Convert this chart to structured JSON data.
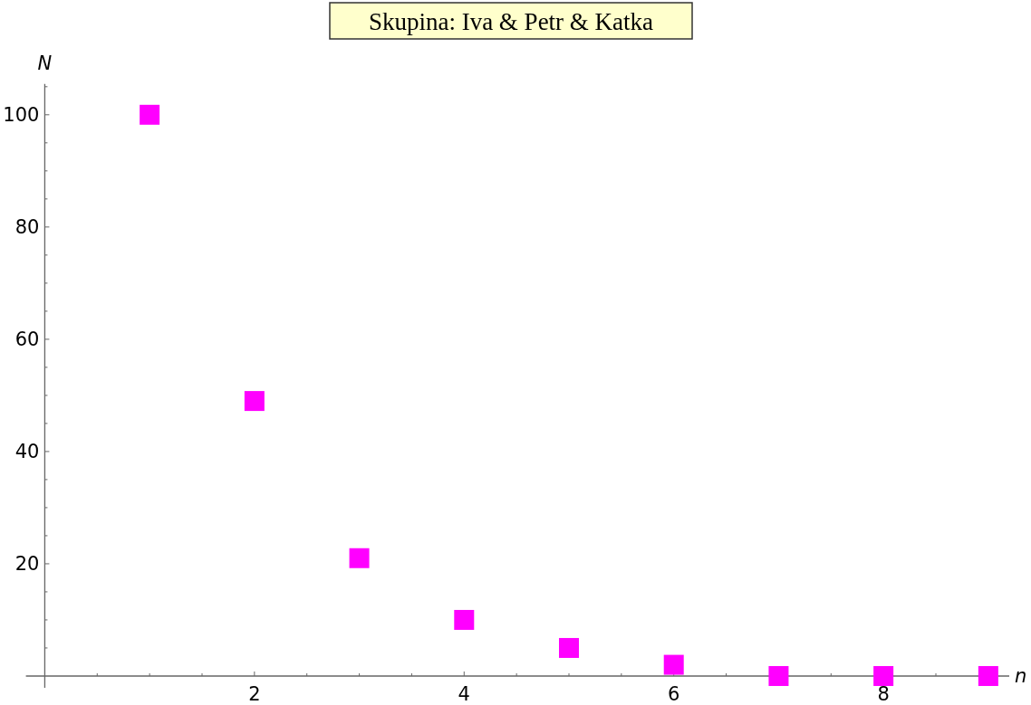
{
  "chart_data": {
    "type": "scatter",
    "title": "Skupina: Iva & Petr & Katka",
    "xlabel": "n",
    "ylabel": "N",
    "x": [
      1,
      2,
      3,
      4,
      5,
      6,
      7,
      8,
      9
    ],
    "series": [
      {
        "color": "#ff00ff",
        "values": [
          100,
          49,
          21,
          10,
          5,
          2,
          0,
          0,
          0
        ]
      }
    ],
    "marker": "square",
    "xlim": [
      -0.18,
      9.2
    ],
    "ylim": [
      -2.1,
      105.5
    ],
    "xticks": [
      {
        "value": 0.5,
        "label": null
      },
      {
        "value": 1,
        "label": null
      },
      {
        "value": 1.5,
        "label": null
      },
      2,
      {
        "value": 2.5,
        "label": null
      },
      {
        "value": 3,
        "label": null
      },
      {
        "value": 3.5,
        "label": null
      },
      4,
      {
        "value": 4.5,
        "label": null
      },
      {
        "value": 5,
        "label": null
      },
      {
        "value": 5.5,
        "label": null
      },
      6,
      {
        "value": 6.5,
        "label": null
      },
      {
        "value": 7,
        "label": null
      },
      {
        "value": 7.5,
        "label": null
      },
      8,
      {
        "value": 8.5,
        "label": null
      },
      {
        "value": 9,
        "label": null
      }
    ],
    "yticks": [
      {
        "value": 5,
        "label": null
      },
      {
        "value": 10,
        "label": null
      },
      {
        "value": 15,
        "label": null
      },
      20,
      {
        "value": 25,
        "label": null
      },
      {
        "value": 30,
        "label": null
      },
      {
        "value": 35,
        "label": null
      },
      40,
      {
        "value": 45,
        "label": null
      },
      {
        "value": 50,
        "label": null
      },
      {
        "value": 55,
        "label": null
      },
      60,
      {
        "value": 65,
        "label": null
      },
      {
        "value": 70,
        "label": null
      },
      {
        "value": 75,
        "label": null
      },
      80,
      {
        "value": 85,
        "label": null
      },
      {
        "value": 90,
        "label": null
      },
      {
        "value": 95,
        "label": null
      },
      100,
      {
        "value": 105,
        "label": null
      }
    ]
  }
}
